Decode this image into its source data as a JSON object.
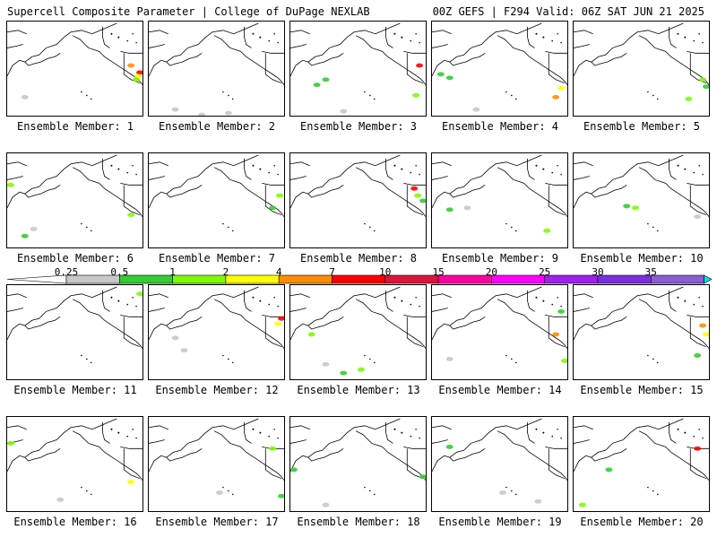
{
  "header": {
    "left": "Supercell Composite Parameter | College of DuPage NEXLAB",
    "right": "00Z GEFS | F294 Valid: 06Z SAT JUN 21 2025"
  },
  "colorbar": {
    "ticks": [
      "0.25",
      "0.5",
      "1",
      "2",
      "4",
      "7",
      "10",
      "15",
      "20",
      "25",
      "30",
      "35"
    ],
    "colors": [
      "#c8c8c8",
      "#32cd32",
      "#7cfc00",
      "#ffff00",
      "#ff8c00",
      "#ff0000",
      "#dc143c",
      "#ff00a0",
      "#ff00ff",
      "#a020f0",
      "#7b2fe0",
      "#8a5cd6",
      "#00e5ee"
    ]
  },
  "panels": [
    {
      "label": "Ensemble Member: 1"
    },
    {
      "label": "Ensemble Member: 2"
    },
    {
      "label": "Ensemble Member: 3"
    },
    {
      "label": "Ensemble Member: 4"
    },
    {
      "label": "Ensemble Member: 5"
    },
    {
      "label": "Ensemble Member: 6"
    },
    {
      "label": "Ensemble Member: 7"
    },
    {
      "label": "Ensemble Member: 8"
    },
    {
      "label": "Ensemble Member: 9"
    },
    {
      "label": "Ensemble Member: 10"
    },
    {
      "label": "Ensemble Member: 11"
    },
    {
      "label": "Ensemble Member: 12"
    },
    {
      "label": "Ensemble Member: 13"
    },
    {
      "label": "Ensemble Member: 14"
    },
    {
      "label": "Ensemble Member: 15"
    },
    {
      "label": "Ensemble Member: 16"
    },
    {
      "label": "Ensemble Member: 17"
    },
    {
      "label": "Ensemble Member: 18"
    },
    {
      "label": "Ensemble Member: 19"
    },
    {
      "label": "Ensemble Member: 20"
    }
  ]
}
